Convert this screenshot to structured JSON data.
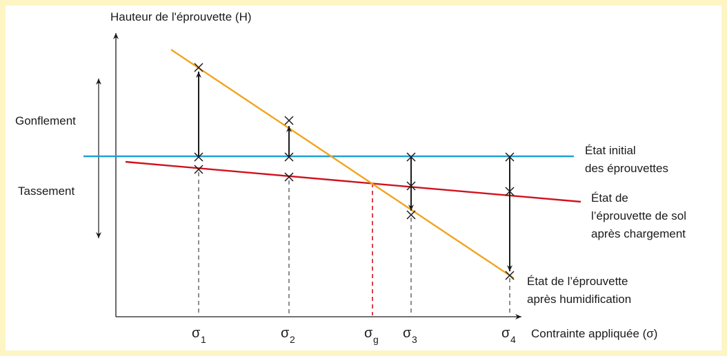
{
  "labels": {
    "y_axis": "Hauteur de l'éprouvette (H)",
    "x_axis": "Contrainte appliquée (σ)",
    "swelling": "Gonflement",
    "settlement": "Tassement",
    "initial_line": [
      "État initial",
      "des éprouvettes"
    ],
    "loaded_line": [
      "État de",
      "l’éprouvette de sol",
      "après chargement"
    ],
    "wetted_line": [
      "État de l’éprouvette",
      "après humidification"
    ]
  },
  "ticks": [
    {
      "base": "σ",
      "sub": "1"
    },
    {
      "base": "σ",
      "sub": "2"
    },
    {
      "base": "σ",
      "sub": "g"
    },
    {
      "base": "σ",
      "sub": "3"
    },
    {
      "base": "σ",
      "sub": "4"
    }
  ],
  "colors": {
    "frame": "#fdf5c4",
    "initial": "#1f9fd8",
    "loaded": "#d0121e",
    "wetted": "#f2a31b",
    "axes": "#1a1a1a",
    "sigma_g_guide": "#d0121e"
  }
}
